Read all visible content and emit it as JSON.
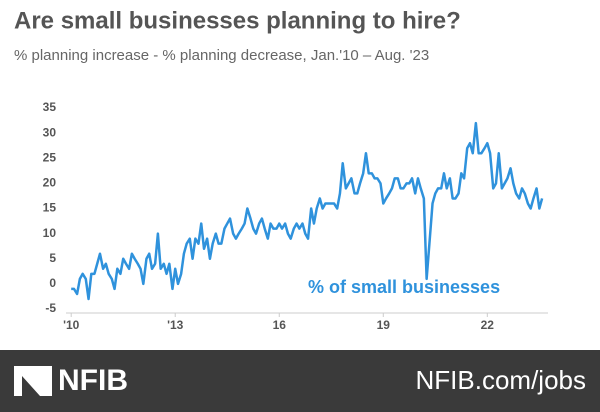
{
  "chart_data": {
    "type": "line",
    "title": "Are small businesses planning to hire?",
    "subtitle": "% planning increase - % planning decrease, Jan.'10 – Aug. '23",
    "x": [
      2010,
      2010.08,
      2010.17,
      2010.25,
      2010.33,
      2010.42,
      2010.5,
      2010.58,
      2010.67,
      2010.75,
      2010.83,
      2010.92,
      2011,
      2011.08,
      2011.17,
      2011.25,
      2011.33,
      2011.42,
      2011.5,
      2011.58,
      2011.67,
      2011.75,
      2011.83,
      2011.92,
      2012,
      2012.08,
      2012.17,
      2012.25,
      2012.33,
      2012.42,
      2012.5,
      2012.58,
      2012.67,
      2012.75,
      2012.83,
      2012.92,
      2013,
      2013.08,
      2013.17,
      2013.25,
      2013.33,
      2013.42,
      2013.5,
      2013.58,
      2013.67,
      2013.75,
      2013.83,
      2013.92,
      2014,
      2014.08,
      2014.17,
      2014.25,
      2014.33,
      2014.42,
      2014.5,
      2014.58,
      2014.67,
      2014.75,
      2014.83,
      2014.92,
      2015,
      2015.08,
      2015.17,
      2015.25,
      2015.33,
      2015.42,
      2015.5,
      2015.58,
      2015.67,
      2015.75,
      2015.83,
      2015.92,
      2016,
      2016.08,
      2016.17,
      2016.25,
      2016.33,
      2016.42,
      2016.5,
      2016.58,
      2016.67,
      2016.75,
      2016.83,
      2016.92,
      2017,
      2017.08,
      2017.17,
      2017.25,
      2017.33,
      2017.42,
      2017.5,
      2017.58,
      2017.67,
      2017.75,
      2017.83,
      2017.92,
      2018,
      2018.08,
      2018.17,
      2018.25,
      2018.33,
      2018.42,
      2018.5,
      2018.58,
      2018.67,
      2018.75,
      2018.83,
      2018.92,
      2019,
      2019.08,
      2019.17,
      2019.25,
      2019.33,
      2019.42,
      2019.5,
      2019.58,
      2019.67,
      2019.75,
      2019.83,
      2019.92,
      2020,
      2020.08,
      2020.17,
      2020.25,
      2020.33,
      2020.42,
      2020.5,
      2020.58,
      2020.67,
      2020.75,
      2020.83,
      2020.92,
      2021,
      2021.08,
      2021.17,
      2021.25,
      2021.33,
      2021.42,
      2021.5,
      2021.58,
      2021.67,
      2021.75,
      2021.83,
      2021.92,
      2022,
      2022.08,
      2022.17,
      2022.25,
      2022.33,
      2022.42,
      2022.5,
      2022.58,
      2022.67,
      2022.75,
      2022.83,
      2022.92,
      2023,
      2023.08,
      2023.17,
      2023.25,
      2023.33,
      2023.42,
      2023.5,
      2023.58
    ],
    "series": [
      {
        "name": "% of small businesses",
        "color": "#2f92dc",
        "values": [
          -1,
          -1,
          -2,
          1,
          2,
          1,
          -3,
          2,
          2,
          4,
          6,
          3,
          4,
          2,
          1,
          -1,
          3,
          2,
          5,
          4,
          3,
          6,
          5,
          4,
          3,
          0,
          5,
          6,
          3,
          4,
          10,
          3,
          4,
          2,
          4,
          -1,
          3,
          0,
          2,
          6,
          8,
          9,
          5,
          9,
          8,
          12,
          7,
          9,
          5,
          8,
          10,
          8,
          8,
          11,
          12,
          13,
          10,
          9,
          10,
          11,
          12,
          15,
          13,
          11,
          10,
          12,
          13,
          11,
          9,
          12,
          11,
          11,
          12,
          11,
          12,
          10,
          9,
          11,
          12,
          11,
          12,
          10,
          9,
          15,
          12,
          15,
          17,
          15,
          16,
          16,
          16,
          16,
          15,
          18,
          24,
          19,
          20,
          21,
          18,
          18,
          20,
          22,
          26,
          22,
          22,
          21,
          21,
          20,
          16,
          17,
          18,
          19,
          21,
          21,
          19,
          19,
          20,
          20,
          21,
          18,
          21,
          19,
          17,
          1,
          8,
          16,
          18,
          19,
          19,
          22,
          19,
          21,
          17,
          17,
          18,
          22,
          21,
          27,
          28,
          26,
          32,
          26,
          26,
          27,
          28,
          26,
          19,
          20,
          26,
          19,
          20,
          21,
          23,
          20,
          18,
          17,
          19,
          18,
          16,
          15,
          17,
          19,
          15,
          17
        ]
      }
    ],
    "xlim": [
      2009.85,
      2023.75
    ],
    "xticks": [
      {
        "value": 2010,
        "label": "'10"
      },
      {
        "value": 2013,
        "label": "'13"
      },
      {
        "value": 2016,
        "label": "16"
      },
      {
        "value": 2019,
        "label": "19"
      },
      {
        "value": 2022,
        "label": "22"
      }
    ],
    "ylim": [
      -5,
      35
    ],
    "yticks": [
      -5,
      0,
      5,
      10,
      15,
      20,
      25,
      30,
      35
    ],
    "grid": false
  },
  "footer": {
    "logo": "NFIB",
    "link": "NFIB.com/jobs"
  }
}
